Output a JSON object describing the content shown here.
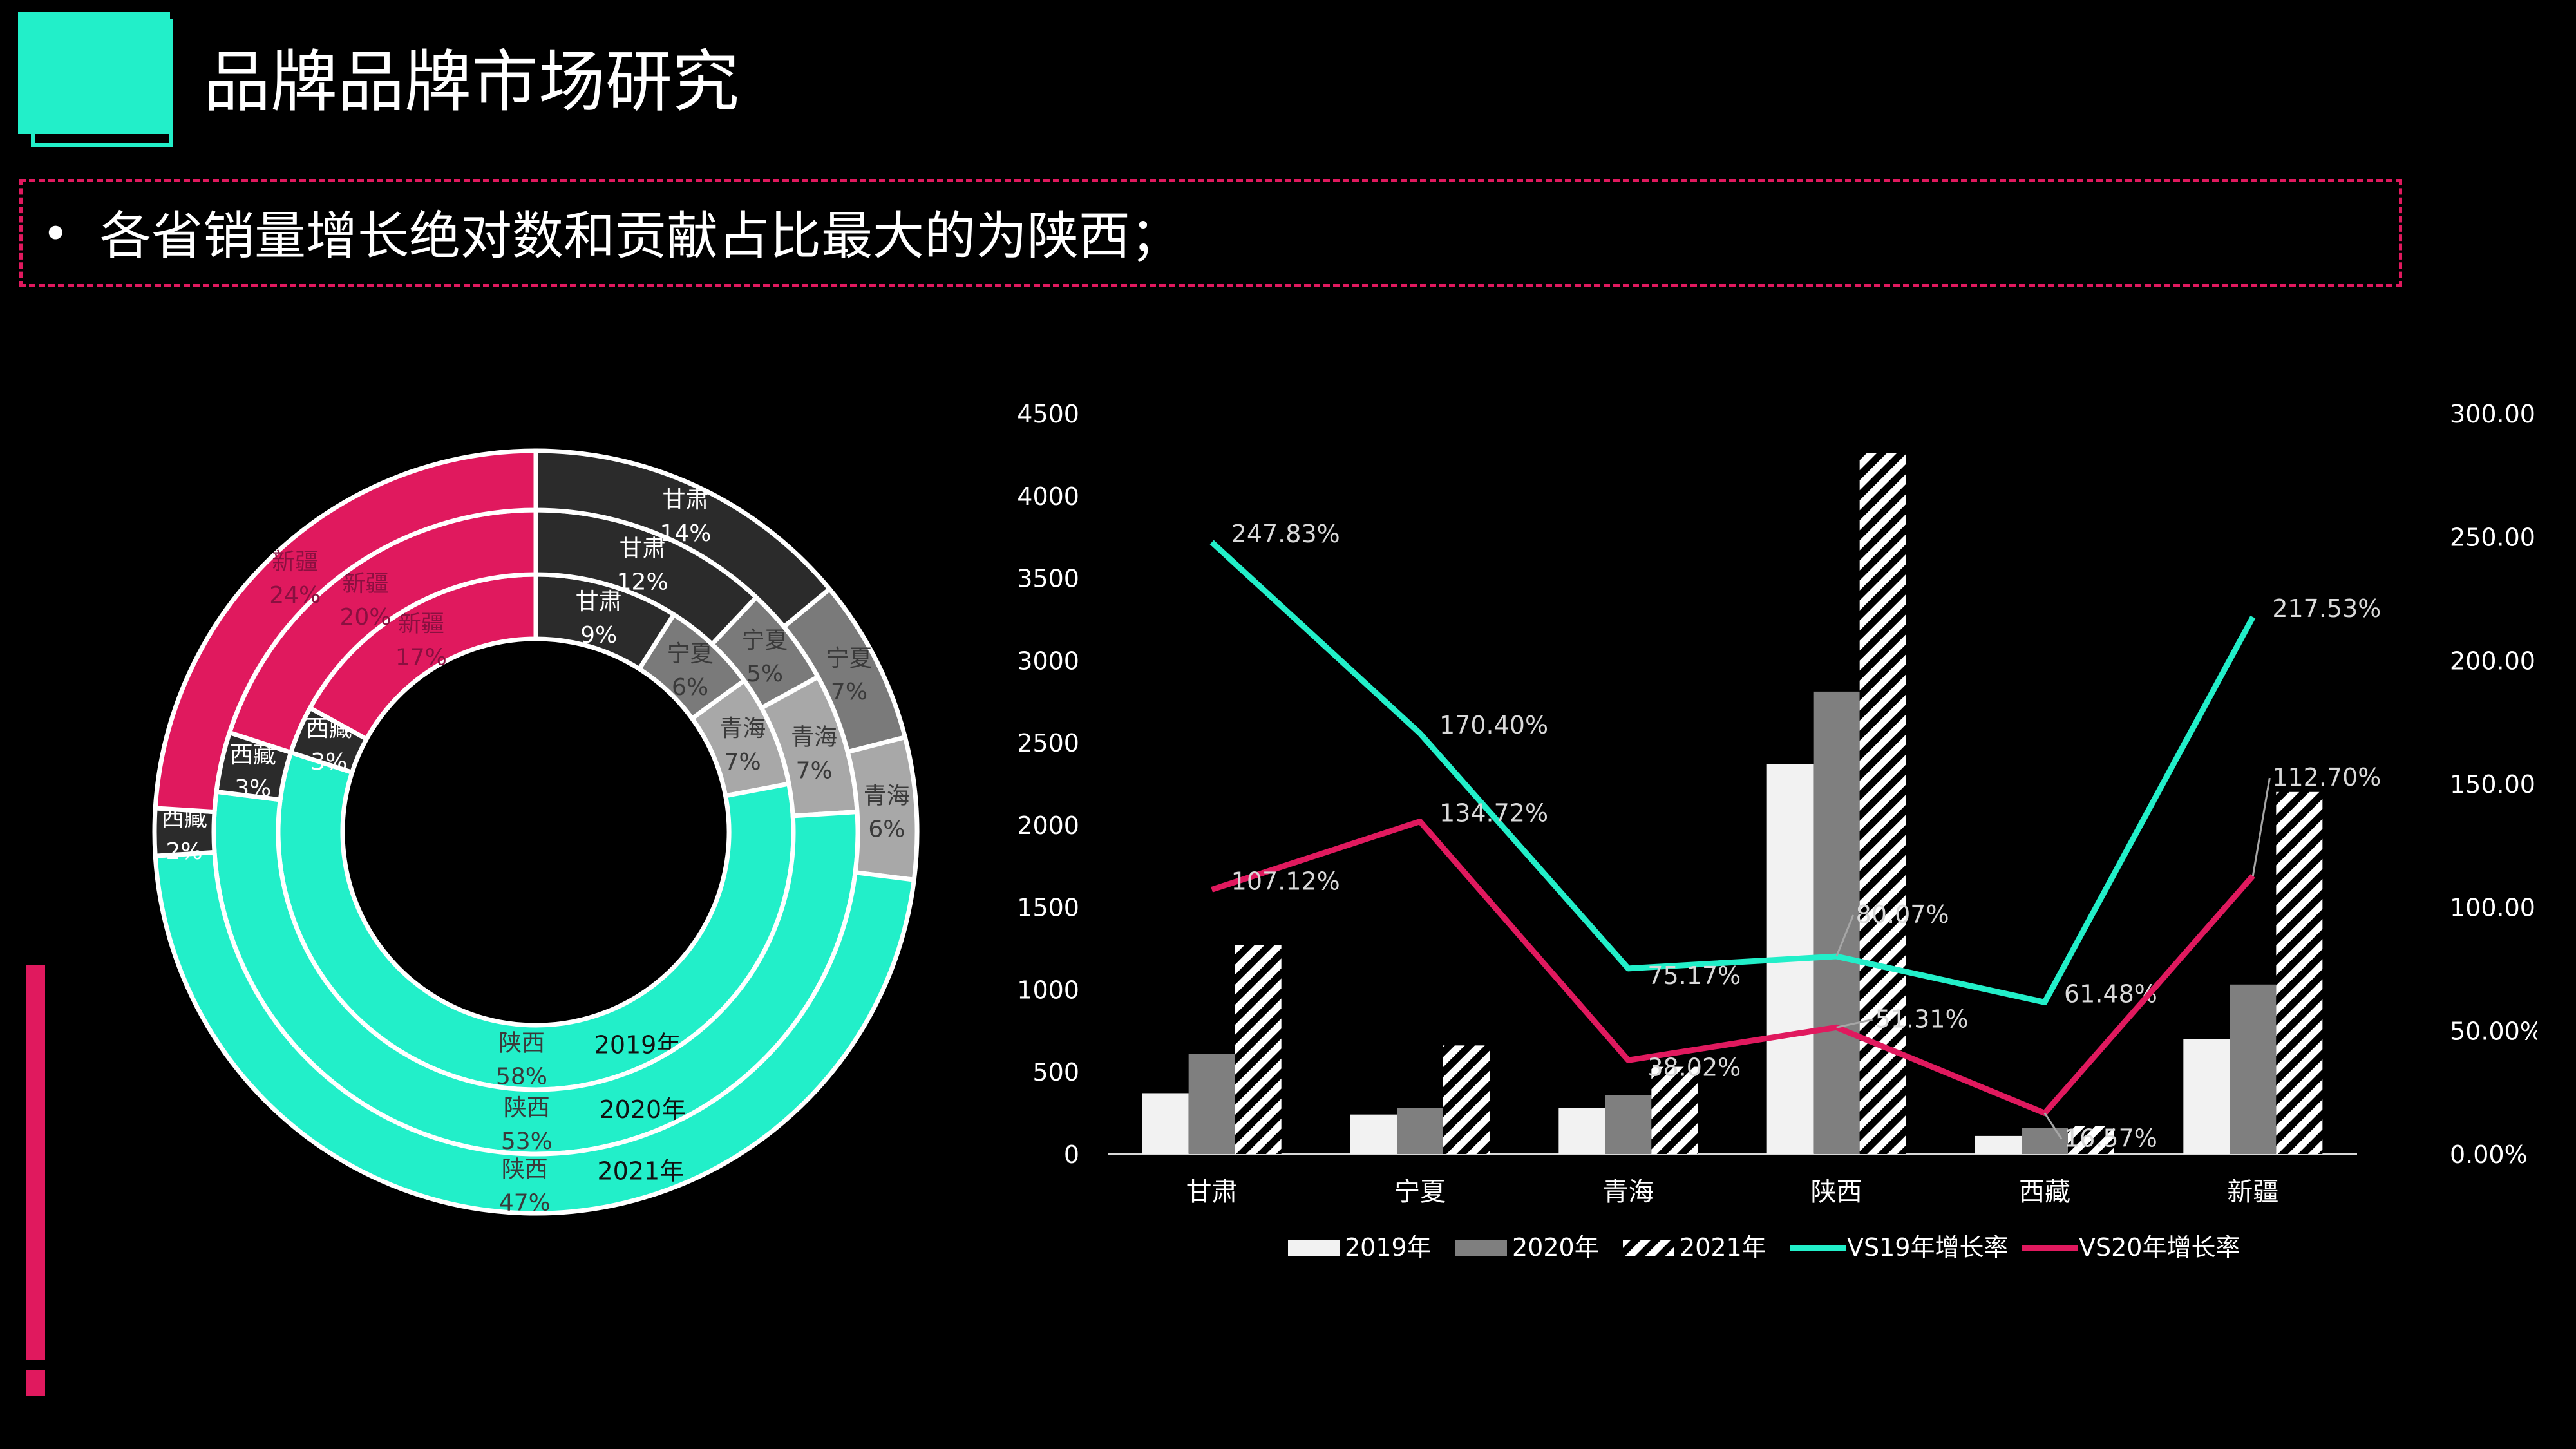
{
  "title": "品牌品牌市场研究",
  "note": {
    "bullet": "•",
    "text": "各省销量增长绝对数和贡献占比最大的为陕西；"
  },
  "colors": {
    "accent": "#22EFC9",
    "brand": "#E0195E",
    "dark": "#2B2B2B",
    "gray": "#7A7A7A",
    "lightgray": "#A8A8A8"
  },
  "chart_data": [
    {
      "type": "donut",
      "rings": [
        {
          "year": "2019年",
          "slices": [
            {
              "name": "甘肃",
              "pct": "9%",
              "value": 9,
              "color": "#2B2B2B",
              "label_color": "#FFFFFF"
            },
            {
              "name": "宁夏",
              "pct": "6%",
              "value": 6,
              "color": "#7A7A7A",
              "label_color": "#3A3A3A"
            },
            {
              "name": "青海",
              "pct": "7%",
              "value": 7,
              "color": "#A8A8A8",
              "label_color": "#3A3A3A"
            },
            {
              "name": "陕西",
              "pct": "58%",
              "value": 58,
              "color": "#22EFC9",
              "label_color": "#3A3A3A"
            },
            {
              "name": "西藏",
              "pct": "3%",
              "value": 3,
              "color": "#2B2B2B",
              "label_color": "#FFFFFF"
            },
            {
              "name": "新疆",
              "pct": "17%",
              "value": 17,
              "color": "#E0195E",
              "label_color": "#8A1040"
            }
          ]
        },
        {
          "year": "2020年",
          "slices": [
            {
              "name": "甘肃",
              "pct": "12%",
              "value": 12,
              "color": "#2B2B2B",
              "label_color": "#FFFFFF"
            },
            {
              "name": "宁夏",
              "pct": "5%",
              "value": 5,
              "color": "#7A7A7A",
              "label_color": "#3A3A3A"
            },
            {
              "name": "青海",
              "pct": "7%",
              "value": 7,
              "color": "#A8A8A8",
              "label_color": "#3A3A3A"
            },
            {
              "name": "陕西",
              "pct": "53%",
              "value": 53,
              "color": "#22EFC9",
              "label_color": "#3A3A3A"
            },
            {
              "name": "西藏",
              "pct": "3%",
              "value": 3,
              "color": "#2B2B2B",
              "label_color": "#FFFFFF"
            },
            {
              "name": "新疆",
              "pct": "20%",
              "value": 20,
              "color": "#E0195E",
              "label_color": "#8A1040"
            }
          ]
        },
        {
          "year": "2021年",
          "slices": [
            {
              "name": "甘肃",
              "pct": "14%",
              "value": 14,
              "color": "#2B2B2B",
              "label_color": "#FFFFFF"
            },
            {
              "name": "宁夏",
              "pct": "7%",
              "value": 7,
              "color": "#7A7A7A",
              "label_color": "#3A3A3A"
            },
            {
              "name": "青海",
              "pct": "6%",
              "value": 6,
              "color": "#A8A8A8",
              "label_color": "#3A3A3A"
            },
            {
              "name": "陕西",
              "pct": "47%",
              "value": 47,
              "color": "#22EFC9",
              "label_color": "#3A3A3A"
            },
            {
              "name": "西藏",
              "pct": "2%",
              "value": 2,
              "color": "#2B2B2B",
              "label_color": "#FFFFFF"
            },
            {
              "name": "新疆",
              "pct": "24%",
              "value": 24,
              "color": "#E0195E",
              "label_color": "#8A1040"
            }
          ]
        }
      ]
    },
    {
      "type": "bar+line",
      "categories": [
        "甘肃",
        "宁夏",
        "青海",
        "陕西",
        "西藏",
        "新疆"
      ],
      "y_left": {
        "min": 0,
        "max": 4500,
        "ticks": [
          "0",
          "500",
          "1000",
          "1500",
          "2000",
          "2500",
          "3000",
          "3500",
          "4000",
          "4500"
        ]
      },
      "y_right": {
        "min": 0,
        "max": 300,
        "ticks": [
          "0.00%",
          "50.00%",
          "100.00%",
          "150.00%",
          "200.00%",
          "250.00%",
          "300.00%"
        ]
      },
      "bar_series": [
        {
          "name": "2019年",
          "values": [
            370,
            240,
            280,
            2370,
            110,
            700
          ],
          "fill": "#F2F2F2",
          "pattern": false
        },
        {
          "name": "2020年",
          "values": [
            610,
            280,
            360,
            2810,
            160,
            1030
          ],
          "fill": "#7F7F7F",
          "pattern": false
        },
        {
          "name": "2021年",
          "values": [
            1270,
            660,
            530,
            4260,
            170,
            2200
          ],
          "fill": "#FFFFFF",
          "pattern": true
        }
      ],
      "line_series": [
        {
          "name": "VS19年增长率",
          "color": "#22EFC9",
          "values": [
            247.83,
            170.4,
            75.17,
            80.07,
            61.48,
            217.53
          ],
          "labels": [
            "247.83%",
            "170.40%",
            "75.17%",
            "80.07%",
            "61.48%",
            "217.53%"
          ]
        },
        {
          "name": "VS20年增长率",
          "color": "#E0195E",
          "values": [
            107.12,
            134.72,
            38.02,
            51.31,
            16.57,
            112.7
          ],
          "labels": [
            "107.12%",
            "134.72%",
            "38.02%",
            "51.31%",
            "16.57%",
            "112.70%"
          ]
        }
      ],
      "legend_position": "bottom"
    }
  ]
}
